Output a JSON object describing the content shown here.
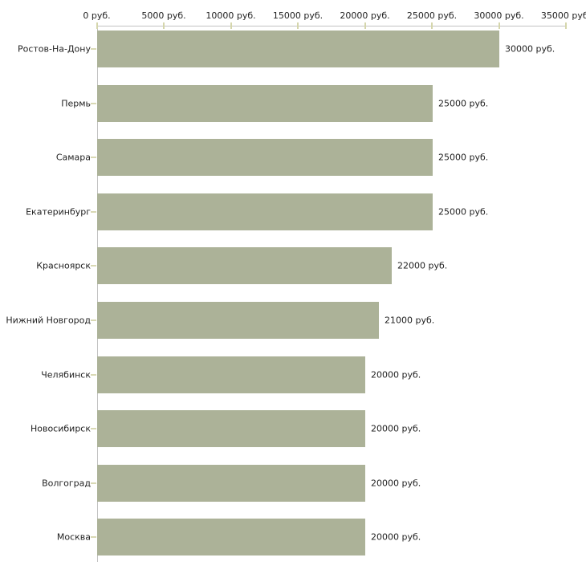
{
  "chart_data": {
    "type": "bar",
    "orientation": "horizontal",
    "title": "",
    "xlabel": "",
    "ylabel": "",
    "categories": [
      "Ростов-На-Дону",
      "Пермь",
      "Самара",
      "Екатеринбург",
      "Красноярск",
      "Нижний Новгород",
      "Челябинск",
      "Новосибирск",
      "Волгоград",
      "Москва"
    ],
    "values": [
      30000,
      25000,
      25000,
      25000,
      22000,
      21000,
      20000,
      20000,
      20000,
      20000
    ],
    "value_labels": [
      "30000 руб.",
      "25000 руб.",
      "25000 руб.",
      "25000 руб.",
      "22000 руб.",
      "21000 руб.",
      "20000 руб.",
      "20000 руб.",
      "20000 руб.",
      "20000 руб."
    ],
    "x_ticks": [
      0,
      5000,
      10000,
      15000,
      20000,
      25000,
      30000,
      35000
    ],
    "x_tick_labels": [
      "0 руб.",
      "5000 руб.",
      "10000 руб.",
      "15000 руб.",
      "20000 руб.",
      "25000 руб.",
      "30000 руб.",
      "35000 руб."
    ],
    "xlim": [
      0,
      35000
    ],
    "grid": false,
    "legend": false,
    "axis_position": "top",
    "colors": {
      "bar": "#acb298",
      "axis_line": "#c2c2c2",
      "axis_tick": "#d5d6ac",
      "category_tick": "#d9d9b4",
      "text": "#222222",
      "background": "#ffffff"
    }
  }
}
